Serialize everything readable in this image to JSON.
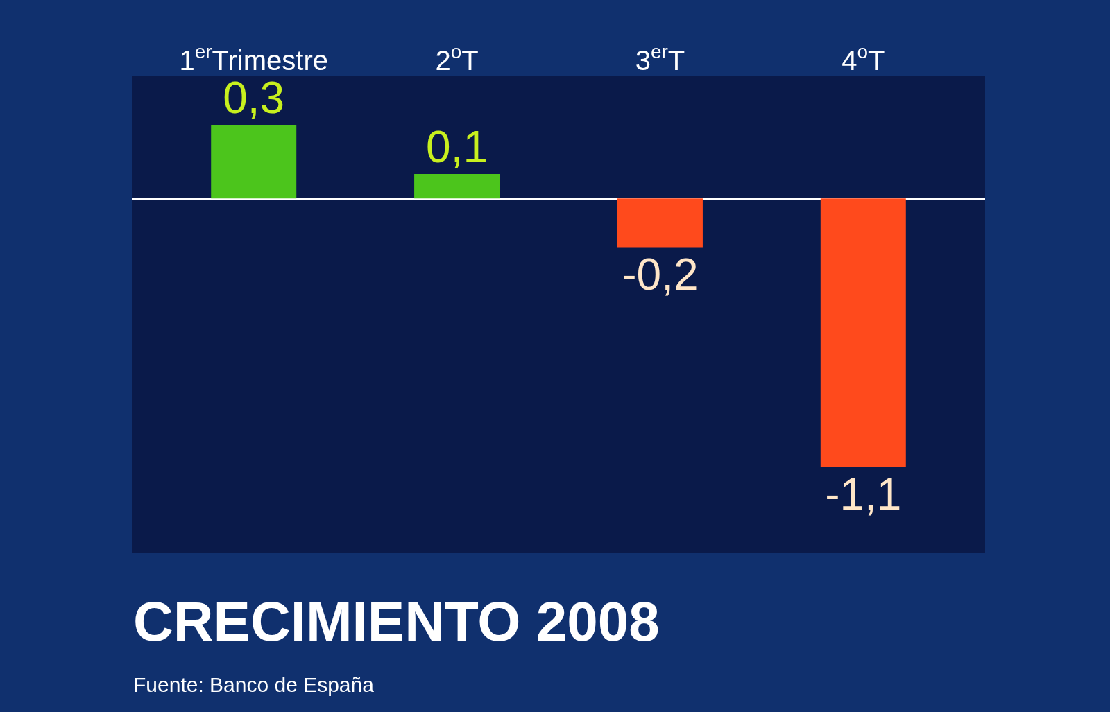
{
  "chart_data": {
    "type": "bar",
    "title": "CRECIMIENTO 2008",
    "annotations": [
      "Fuente: Banco de España"
    ],
    "categories": [
      "1$^{er}$Trimestre",
      "2$^{o}$T",
      "3$^{er}$T",
      "4$^{o}$T"
    ],
    "values": [
      0.3,
      0.1,
      -0.2,
      -1.1
    ],
    "colors": [
      "#4cc51c",
      "#4cc51c",
      "#ff4a1c",
      "#ff4a1c"
    ],
    "value_labels": [
      "0,3",
      "0,1",
      "-0,2",
      "-1,1"
    ],
    "ylim": [
      -1.45,
      0.5
    ],
    "tick_labels": "x",
    "grid": false,
    "legend": false
  }
}
